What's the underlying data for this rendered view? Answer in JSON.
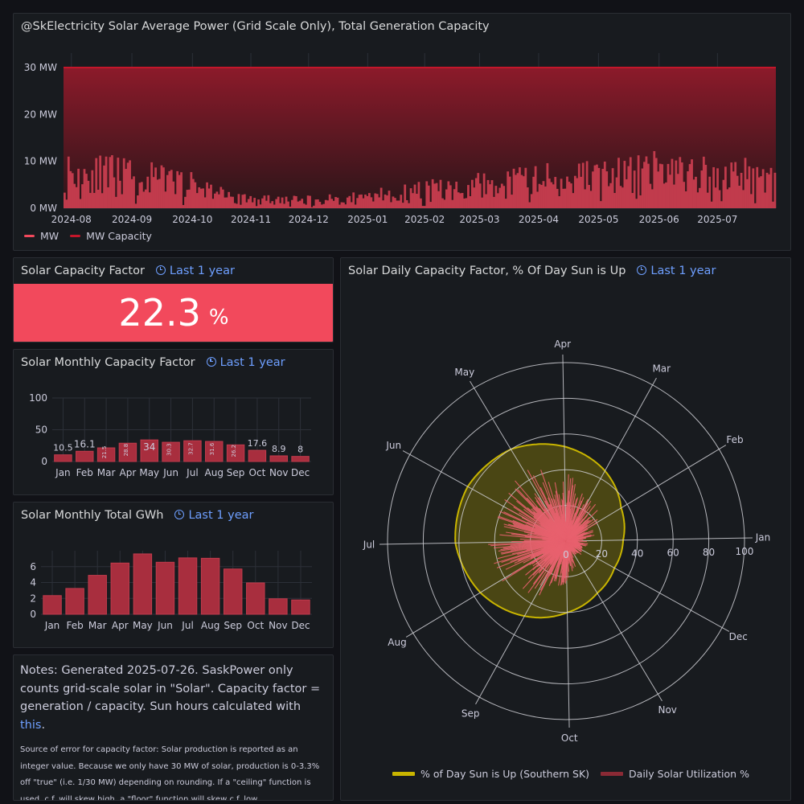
{
  "power_panel": {
    "title": "@SkElectricity Solar Average Power (Grid Scale Only), Total Generation Capacity",
    "legend": [
      {
        "label": "MW",
        "color": "#f2495c"
      },
      {
        "label": "MW Capacity",
        "color": "#c4162a"
      }
    ]
  },
  "capacity_factor_panel": {
    "title": "Solar Capacity Factor",
    "time_range": "Last 1 year",
    "value": "22.3",
    "unit": "%"
  },
  "monthly_cf_panel": {
    "title": "Solar Monthly Capacity Factor",
    "time_range": "Last 1 year"
  },
  "monthly_gwh_panel": {
    "title": "Solar Monthly Total GWh",
    "time_range": "Last 1 year"
  },
  "polar_panel": {
    "title": "Solar Daily Capacity Factor, % Of Day Sun is Up",
    "time_range": "Last 1 year",
    "legend": [
      {
        "label": "% of Day Sun is Up (Southern SK)",
        "color": "#c9b500"
      },
      {
        "label": "Daily Solar Utilization %",
        "color": "#8a2a35"
      }
    ]
  },
  "notes": {
    "main_prefix": "Notes: Generated 2025-07-26. SaskPower only counts grid-scale solar in \"Solar\". Capacity factor = generation / capacity. Sun hours calculated with ",
    "link_text": "this",
    "main_suffix": ".",
    "small": "Source of error for capacity factor: Solar production is reported as an integer value. Because we only have 30 MW of solar, production is 0-3.3% off \"true\" (i.e. 1/30 MW) depending on rounding. If a \"ceiling\" function is used, c.f. will skew high, a \"floor\" function will skew c.f. low."
  },
  "chart_data": [
    {
      "type": "area",
      "title": "@SkElectricity Solar Average Power (Grid Scale Only), Total Generation Capacity",
      "x_ticks": [
        "2024-08",
        "2024-09",
        "2024-10",
        "2024-11",
        "2024-12",
        "2025-01",
        "2025-02",
        "2025-03",
        "2025-04",
        "2025-05",
        "2025-06",
        "2025-07"
      ],
      "y_ticks": [
        "0 MW",
        "10 MW",
        "20 MW",
        "30 MW"
      ],
      "ylim": [
        0,
        30
      ],
      "series": [
        {
          "name": "MW Capacity",
          "values": [
            30
          ]
        },
        {
          "name": "MW",
          "monthly_typical_values": [
            9.5,
            8.5,
            6.5,
            2.5,
            2.0,
            3.0,
            4.5,
            6.0,
            7.5,
            8.5,
            9.5,
            8.5
          ]
        }
      ]
    },
    {
      "type": "bar",
      "title": "Solar Monthly Capacity Factor",
      "categories": [
        "Jan",
        "Feb",
        "Mar",
        "Apr",
        "May",
        "Jun",
        "Jul",
        "Aug",
        "Sep",
        "Oct",
        "Nov",
        "Dec"
      ],
      "values": [
        10.5,
        16.1,
        21.5,
        28.8,
        34,
        30.3,
        32.7,
        31.6,
        26.2,
        17.6,
        8.9,
        8
      ],
      "labels": [
        "10.5",
        "16.1",
        "21.5",
        "28.8",
        "34",
        "30.3",
        "32.7",
        "31.6",
        "26.2",
        "17.6",
        "8.9",
        "8"
      ],
      "y_ticks": [
        "0",
        "50",
        "100"
      ],
      "ylim": [
        0,
        100
      ]
    },
    {
      "type": "bar",
      "title": "Solar Monthly Total GWh",
      "categories": [
        "Jan",
        "Feb",
        "Mar",
        "Apr",
        "May",
        "Jun",
        "Jul",
        "Aug",
        "Sep",
        "Oct",
        "Nov",
        "Dec"
      ],
      "values": [
        2.35,
        3.25,
        4.9,
        6.45,
        7.6,
        6.55,
        7.1,
        7.05,
        5.7,
        3.95,
        1.95,
        1.8
      ],
      "y_ticks": [
        "0",
        "2",
        "4",
        "6"
      ],
      "ylim": [
        0,
        8
      ]
    },
    {
      "type": "polar",
      "title": "Solar Daily Capacity Factor, % Of Day Sun is Up",
      "radial_ticks": [
        "0",
        "20",
        "40",
        "60",
        "80",
        "100"
      ],
      "rlim": [
        0,
        100
      ],
      "angular_labels": [
        "Jan",
        "Feb",
        "Mar",
        "Apr",
        "May",
        "Jun",
        "Jul",
        "Aug",
        "Sep",
        "Oct",
        "Nov",
        "Dec"
      ],
      "sun_up_pct_monthly": [
        32,
        36,
        45,
        53,
        60,
        63,
        62,
        56,
        48,
        40,
        34,
        31
      ],
      "utilization_pct_monthly_typical": [
        10.5,
        16.1,
        21.5,
        28.8,
        34,
        30.3,
        32.7,
        31.6,
        26.2,
        17.6,
        8.9,
        8
      ]
    }
  ]
}
